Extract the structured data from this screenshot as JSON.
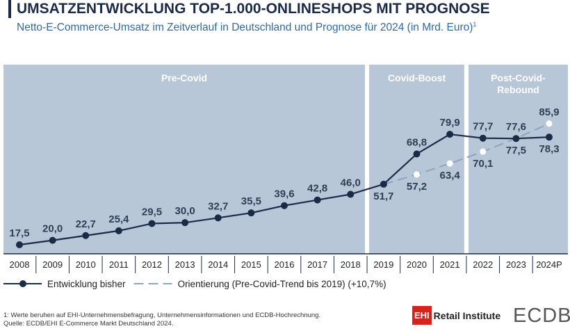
{
  "chart_data": {
    "type": "line",
    "title": "UMSATZENTWICKLUNG TOP-1.000-ONLINESHOPS MIT PROGNOSE",
    "subtitle": "Netto-E-Commerce-Umsatz im Zeitverlauf in Deutschland und Prognose für 2024 (in Mrd. Euro)",
    "subtitle_footnote_marker": "1",
    "categories": [
      "2008",
      "2009",
      "2010",
      "2011",
      "2012",
      "2013",
      "2014",
      "2015",
      "2016",
      "2017",
      "2018",
      "2019",
      "2020",
      "2021",
      "2022",
      "2023",
      "2024P"
    ],
    "series": [
      {
        "name": "Entwicklung bisher",
        "color": "#1b2a47",
        "style": "solid",
        "values": [
          17.5,
          20.0,
          22.7,
          25.4,
          29.5,
          30.0,
          32.7,
          35.5,
          39.6,
          42.8,
          46.0,
          51.7,
          68.8,
          79.9,
          77.7,
          77.5,
          78.3
        ],
        "value_labels": [
          "17,5",
          "20,0",
          "22,7",
          "25,4",
          "29,5",
          "30,0",
          "32,7",
          "35,5",
          "39,6",
          "42,8",
          "46,0",
          "51,7",
          "68,8",
          "79,9",
          "77,7",
          "77,5",
          "78,3"
        ]
      },
      {
        "name": "Orientierung (Pre-Covid-Trend bis 2019) (+10,7%)",
        "color": "#8ea3c0",
        "style": "dashed",
        "values": [
          null,
          null,
          null,
          null,
          null,
          null,
          null,
          null,
          null,
          null,
          null,
          51.7,
          57.2,
          63.4,
          70.1,
          77.6,
          85.9
        ],
        "value_labels": [
          null,
          null,
          null,
          null,
          null,
          null,
          null,
          null,
          null,
          null,
          null,
          null,
          "57,2",
          "63,4",
          "70,1",
          "77,6",
          "85,9"
        ]
      }
    ],
    "phases": [
      {
        "label": "Pre-Covid",
        "first": "2008",
        "last": "2018"
      },
      {
        "label": "Covid-Boost",
        "first": "2019",
        "last": "2021"
      },
      {
        "label": "Post-Covid-Rebound",
        "first": "2022",
        "last": "2024P"
      }
    ],
    "ylim": [
      12.4,
      119.2
    ],
    "footnotes": [
      "1: Werte beruhen auf EHI-Unternehmensbefragung, Unternehmensinformationen und ECDB-Hochrechnung.",
      "Quelle: ECDB/EHI E-Commerce Markt Deutschland 2024."
    ],
    "logos": {
      "ehi_mark": "EHI",
      "ehi_name": "Retail Institute",
      "ecdb": "ECDB"
    }
  }
}
